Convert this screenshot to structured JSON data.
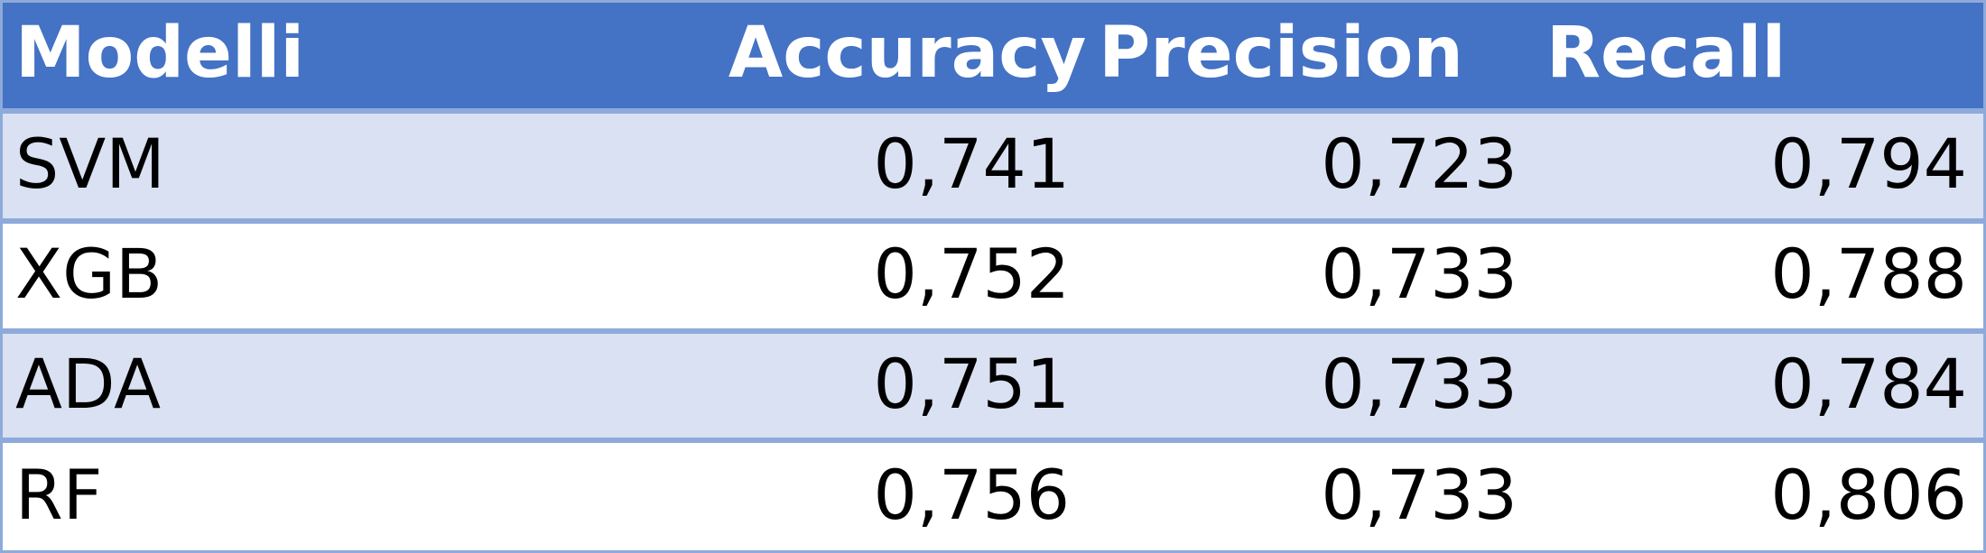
{
  "table": {
    "headers": [
      "Modelli",
      "Accuracy",
      "Precision",
      "Recall"
    ],
    "rows": [
      {
        "model": "SVM",
        "accuracy": "0,741",
        "precision": "0,723",
        "recall": "0,794"
      },
      {
        "model": "XGB",
        "accuracy": "0,752",
        "precision": "0,733",
        "recall": "0,788"
      },
      {
        "model": "ADA",
        "accuracy": "0,751",
        "precision": "0,733",
        "recall": "0,784"
      },
      {
        "model": "RF",
        "accuracy": "0,756",
        "precision": "0,733",
        "recall": "0,806"
      }
    ]
  },
  "colors": {
    "header_bg": "#4472c4",
    "band_bg": "#d9e1f2",
    "border": "#8eaadb",
    "header_text": "#ffffff",
    "body_text": "#000000"
  }
}
